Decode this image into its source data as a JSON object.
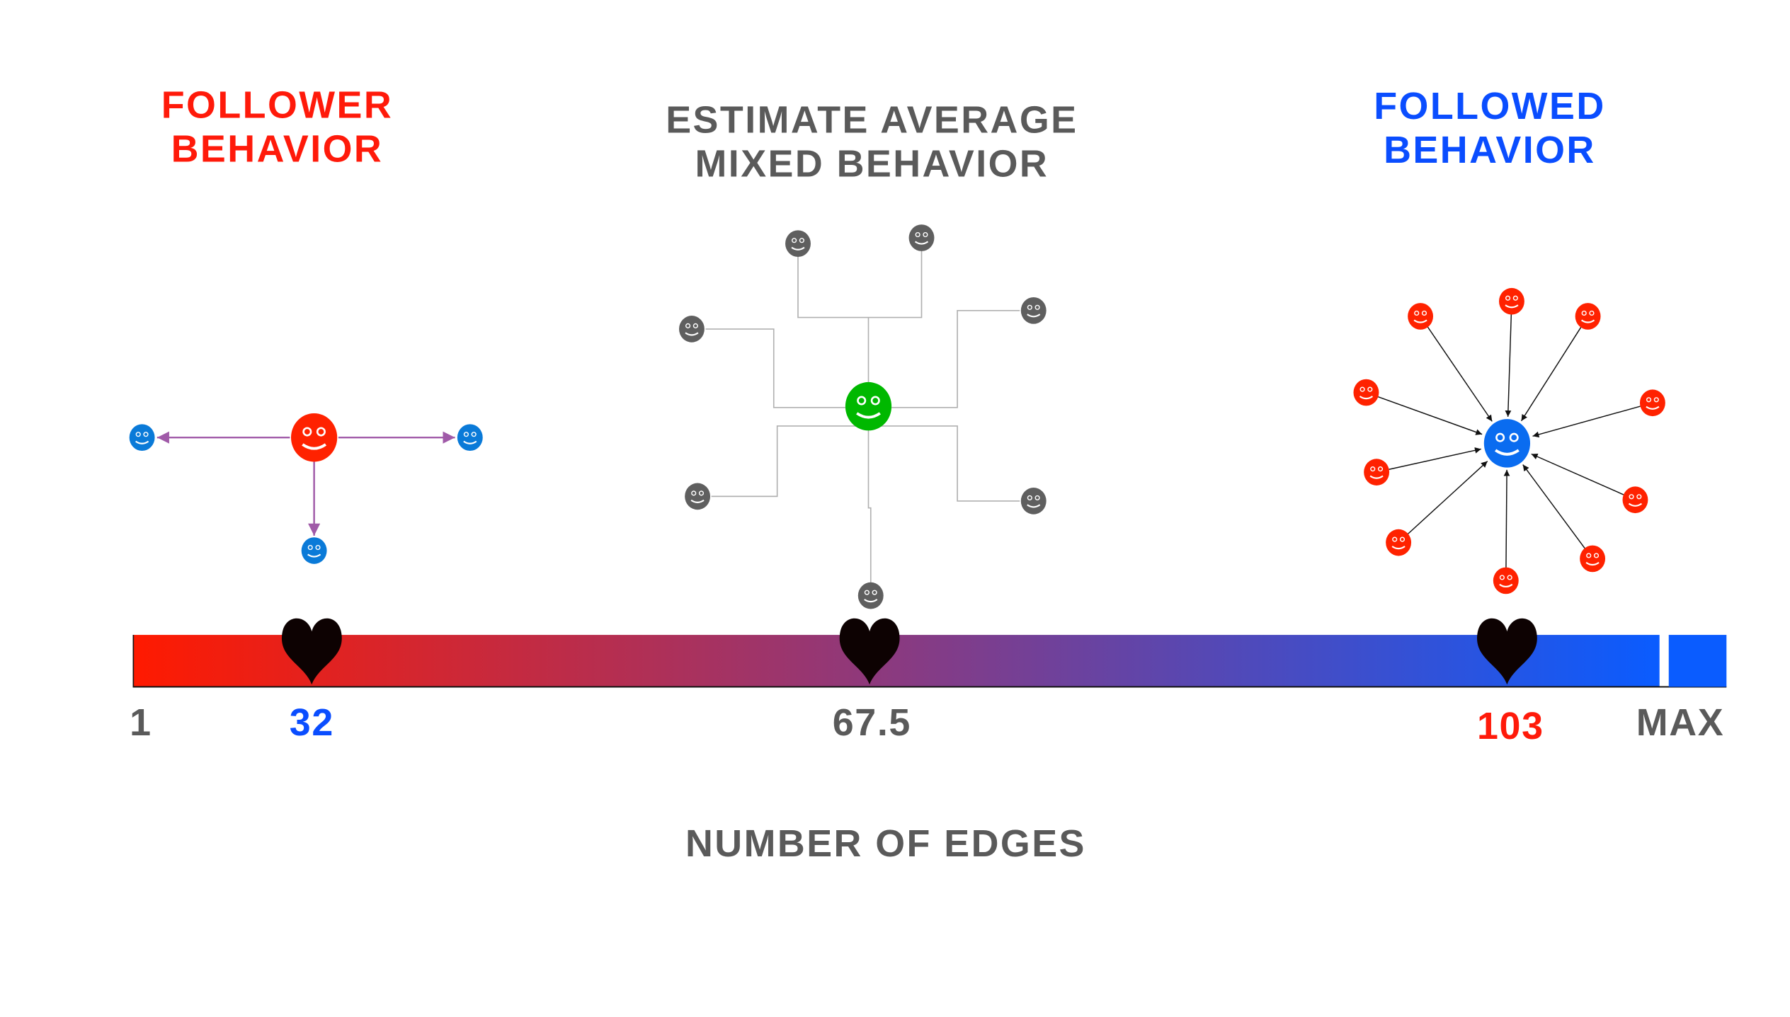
{
  "titles": {
    "follower": [
      "FOLLOWER",
      "BEHAVIOR"
    ],
    "mixed": [
      "ESTIMATE AVERAGE",
      "MIXED BEHAVIOR"
    ],
    "followed": [
      "FOLLOWED",
      "BEHAVIOR"
    ]
  },
  "axis_label": "NUMBER OF EDGES",
  "scale": {
    "ticks": [
      {
        "label": "1",
        "color": "#5a5a5a"
      },
      {
        "label": "32",
        "color": "#0a4dff"
      },
      {
        "label": "67.5",
        "color": "#5a5a5a"
      },
      {
        "label": "103",
        "color": "#ff1a0a"
      },
      {
        "label": "MAX",
        "color": "#5a5a5a"
      }
    ],
    "markers": [
      32,
      67.5,
      103
    ],
    "marker_icon": "heart-icon",
    "gradient": [
      "#ff1a00",
      "#8a3a80",
      "#0a5cff"
    ]
  },
  "colors": {
    "follower_title": "#ff1a0a",
    "mixed_title": "#5a5a5a",
    "followed_title": "#0a4dff",
    "red_node": "#ff2200",
    "blue_node": "#0a6cf0",
    "light_blue_node": "#0a7ad8",
    "green_node": "#00b800",
    "gray_node": "#5f5f5f",
    "follower_edge": "#a05aa8",
    "mixed_edge": "#b0b0b0",
    "followed_edge": "#111111"
  },
  "node_icon": "smiley-icon"
}
